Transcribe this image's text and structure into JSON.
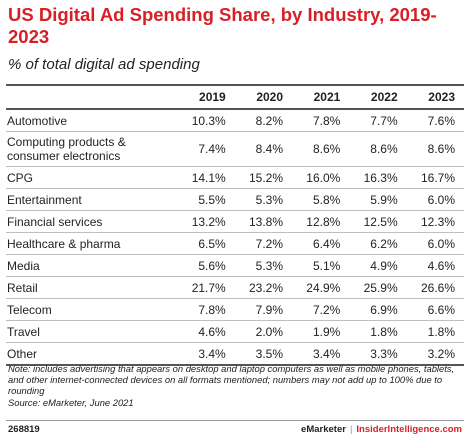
{
  "title": "US Digital Ad Spending Share, by Industry, 2019-2023",
  "subtitle": "% of total digital ad spending",
  "chart_data": {
    "type": "table",
    "title": "US Digital Ad Spending Share, by Industry, 2019-2023",
    "subtitle": "% of total digital ad spending",
    "columns": [
      "2019",
      "2020",
      "2021",
      "2022",
      "2023"
    ],
    "rows": [
      {
        "category": [
          "Automotive"
        ],
        "values": [
          "10.3%",
          "8.2%",
          "7.8%",
          "7.7%",
          "7.6%"
        ]
      },
      {
        "category": [
          "Computing products &",
          "consumer electronics"
        ],
        "values": [
          "7.4%",
          "8.4%",
          "8.6%",
          "8.6%",
          "8.6%"
        ]
      },
      {
        "category": [
          "CPG"
        ],
        "values": [
          "14.1%",
          "15.2%",
          "16.0%",
          "16.3%",
          "16.7%"
        ]
      },
      {
        "category": [
          "Entertainment"
        ],
        "values": [
          "5.5%",
          "5.3%",
          "5.8%",
          "5.9%",
          "6.0%"
        ]
      },
      {
        "category": [
          "Financial services"
        ],
        "values": [
          "13.2%",
          "13.8%",
          "12.8%",
          "12.5%",
          "12.3%"
        ]
      },
      {
        "category": [
          "Healthcare & pharma"
        ],
        "values": [
          "6.5%",
          "7.2%",
          "6.4%",
          "6.2%",
          "6.0%"
        ]
      },
      {
        "category": [
          "Media"
        ],
        "values": [
          "5.6%",
          "5.3%",
          "5.1%",
          "4.9%",
          "4.6%"
        ]
      },
      {
        "category": [
          "Retail"
        ],
        "values": [
          "21.7%",
          "23.2%",
          "24.9%",
          "25.9%",
          "26.6%"
        ]
      },
      {
        "category": [
          "Telecom"
        ],
        "values": [
          "7.8%",
          "7.9%",
          "7.2%",
          "6.9%",
          "6.6%"
        ]
      },
      {
        "category": [
          "Travel"
        ],
        "values": [
          "4.6%",
          "2.0%",
          "1.9%",
          "1.8%",
          "1.8%"
        ]
      },
      {
        "category": [
          "Other"
        ],
        "values": [
          "3.4%",
          "3.5%",
          "3.4%",
          "3.3%",
          "3.2%"
        ]
      }
    ]
  },
  "note": "Note: includes advertising that appears on desktop and laptop computers as well as mobile phones, tablets, and other internet-connected devices on all formats mentioned; numbers may not add up to 100% due to rounding",
  "source": "Source: eMarketer, June 2021",
  "footer": {
    "chart_id": "268819",
    "brand_emarketer": "eMarketer",
    "brand_separator": "|",
    "brand_insider": "InsiderIntelligence.com"
  },
  "colors": {
    "accent": "#d81f26",
    "text": "#222222",
    "rule": "#555555",
    "row_rule": "#bfbfbf"
  }
}
